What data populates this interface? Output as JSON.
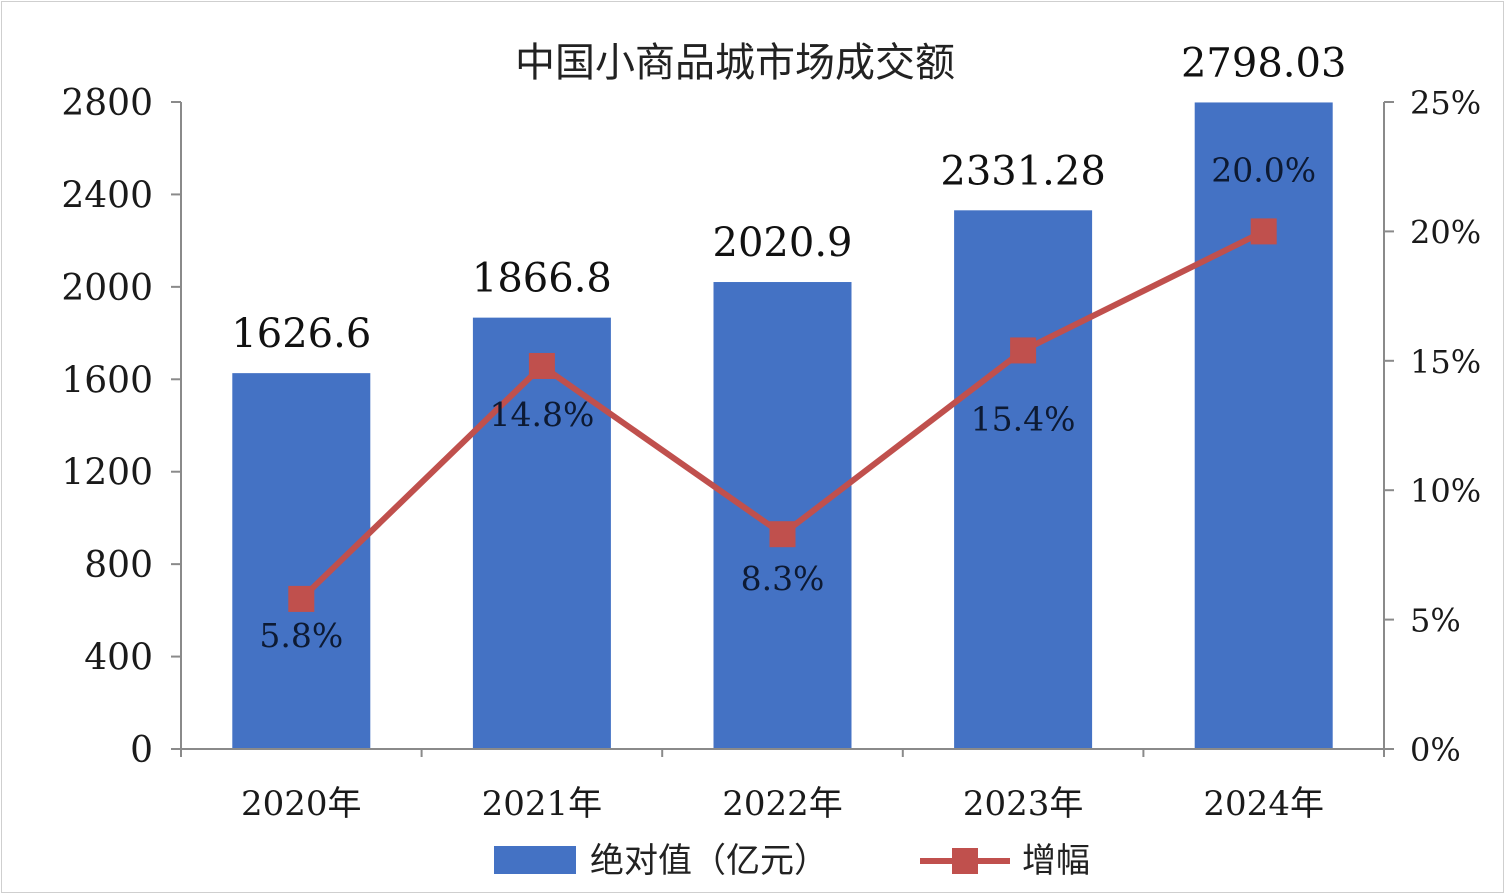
{
  "chart_data": {
    "type": "bar",
    "title": "中国小商品城市场成交额",
    "categories": [
      "2020年",
      "2021年",
      "2022年",
      "2023年",
      "2024年"
    ],
    "series": [
      {
        "name": "绝对值（亿元）",
        "type": "bar",
        "axis": "left",
        "values": [
          1626.6,
          1866.8,
          2020.9,
          2331.28,
          2798.03
        ],
        "labels": [
          "1626.6",
          "1866.8",
          "2020.9",
          "2331.28",
          "2798.03"
        ]
      },
      {
        "name": "增幅",
        "type": "line",
        "axis": "right",
        "values": [
          5.8,
          14.8,
          8.3,
          15.4,
          20.0
        ],
        "labels": [
          "5.8%",
          "14.8%",
          "8.3%",
          "15.4%",
          "20.0%"
        ]
      }
    ],
    "y_left": {
      "ylim": [
        0,
        2800
      ],
      "ticks": [
        "0",
        "400",
        "800",
        "1200",
        "1600",
        "2000",
        "2400",
        "2800"
      ]
    },
    "y_right": {
      "ylim": [
        0,
        25
      ],
      "ticks": [
        "0%",
        "5%",
        "10%",
        "15%",
        "20%",
        "25%"
      ]
    },
    "grid": false,
    "legend_position": "bottom",
    "colors": {
      "bar": "#4472c4",
      "line": "#c0504d"
    }
  }
}
